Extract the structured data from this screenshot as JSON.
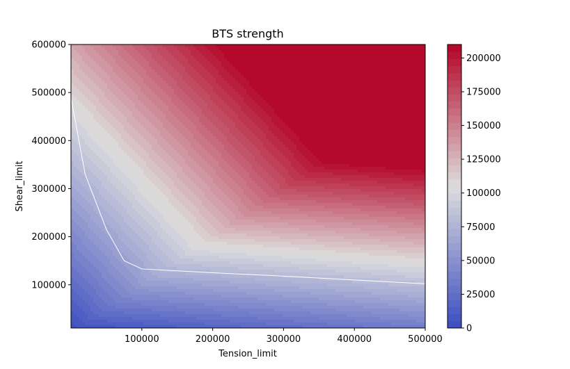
{
  "chart_data": {
    "type": "heatmap",
    "subtype": "filled-contour",
    "title": "BTS strength",
    "xlabel": "Tension_limit",
    "ylabel": "Shear_limit",
    "xlim": [
      0,
      500000
    ],
    "ylim": [
      10000,
      600000
    ],
    "x_ticks": [
      100000,
      200000,
      300000,
      400000,
      500000
    ],
    "x_tick_labels": [
      "100000",
      "200000",
      "300000",
      "400000",
      "500000"
    ],
    "y_ticks": [
      100000,
      200000,
      300000,
      400000,
      500000,
      600000
    ],
    "y_tick_labels": [
      "100000",
      "200000",
      "300000",
      "400000",
      "500000",
      "600000"
    ],
    "colormap": "coolwarm",
    "color_low": "#3b4cc0",
    "color_mid": "#dddddd",
    "color_high": "#b40426",
    "colorbar": {
      "range": [
        0,
        210000
      ],
      "ticks": [
        0,
        25000,
        50000,
        75000,
        100000,
        125000,
        150000,
        175000,
        200000
      ],
      "tick_labels": [
        "0",
        "25000",
        "50000",
        "75000",
        "100000",
        "125000",
        "150000",
        "175000",
        "200000"
      ],
      "levels": 40
    },
    "white_contour_line": {
      "points": [
        [
          0,
          490000
        ],
        [
          10000,
          410000
        ],
        [
          20000,
          330000
        ],
        [
          50000,
          215000
        ],
        [
          75000,
          150000
        ],
        [
          100000,
          133000
        ],
        [
          200000,
          125000
        ],
        [
          300000,
          118000
        ],
        [
          400000,
          110000
        ],
        [
          500000,
          102000
        ]
      ]
    }
  }
}
